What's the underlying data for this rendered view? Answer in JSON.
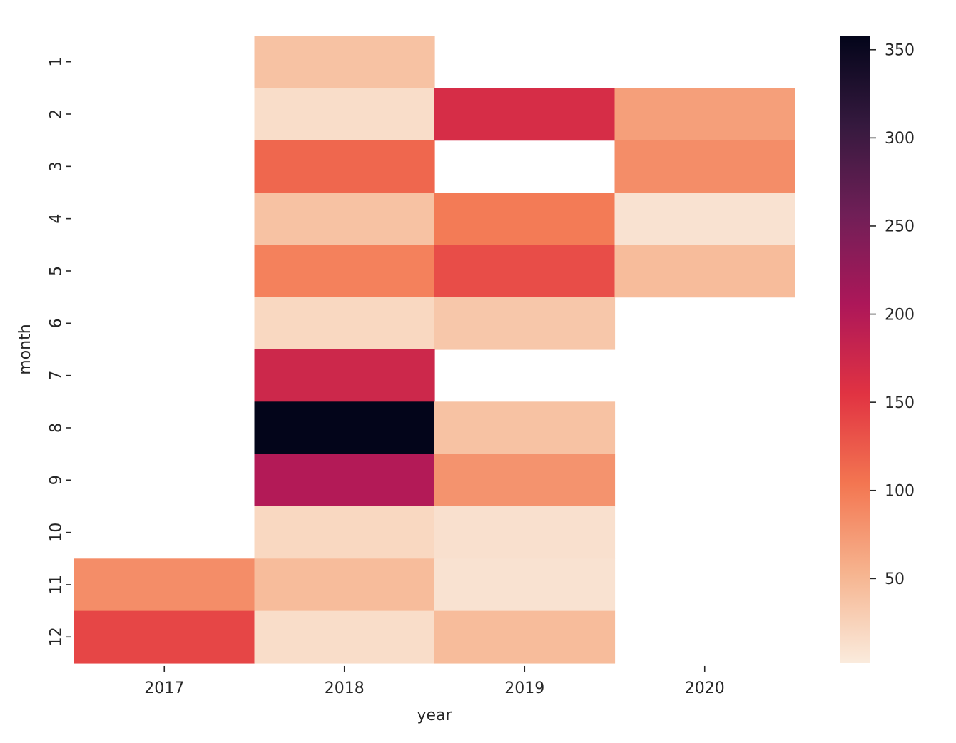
{
  "chart_data": {
    "type": "heatmap",
    "title": "",
    "xlabel": "year",
    "ylabel": "month",
    "x": [
      "2017",
      "2018",
      "2019",
      "2020"
    ],
    "y": [
      "1",
      "2",
      "3",
      "4",
      "5",
      "6",
      "7",
      "8",
      "9",
      "10",
      "11",
      "12"
    ],
    "values": [
      [
        null,
        40,
        null,
        null
      ],
      [
        null,
        15,
        165,
        70
      ],
      [
        null,
        115,
        null,
        85
      ],
      [
        null,
        40,
        100,
        10
      ],
      [
        null,
        95,
        135,
        45
      ],
      [
        null,
        20,
        35,
        null
      ],
      [
        null,
        175,
        null,
        null
      ],
      [
        null,
        358,
        40,
        null
      ],
      [
        null,
        200,
        80,
        null
      ],
      [
        null,
        20,
        12,
        null
      ],
      [
        85,
        45,
        10,
        null
      ],
      [
        140,
        15,
        45,
        null
      ]
    ],
    "colorbar": {
      "ticks": [
        50,
        100,
        150,
        200,
        250,
        300,
        350
      ],
      "range": [
        2,
        358
      ],
      "colormap": "rocket_r"
    },
    "colormap_stops": [
      "#faebdd",
      "#f6b48f",
      "#f37651",
      "#e13342",
      "#ad1759",
      "#701f57",
      "#35193e",
      "#03051a"
    ],
    "missing_color": "#ffffff",
    "grid": false,
    "legend": "colorbar-right"
  }
}
